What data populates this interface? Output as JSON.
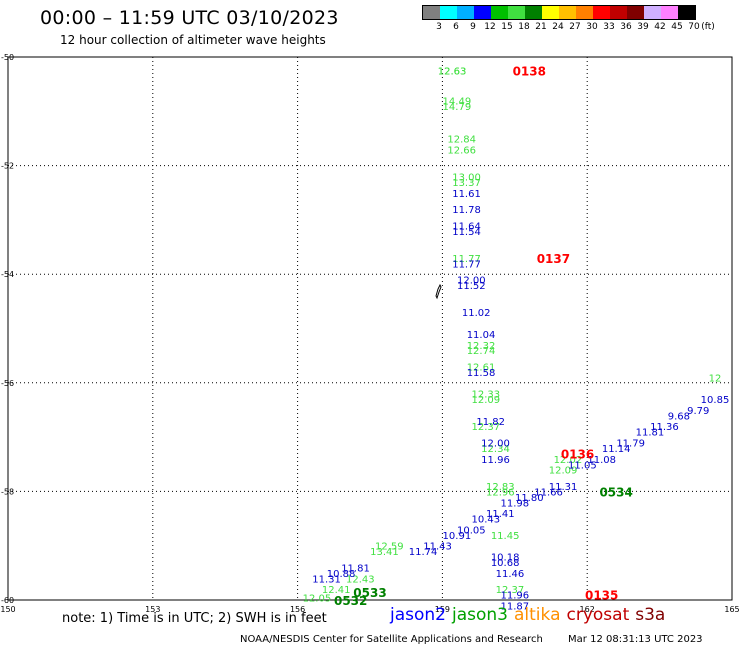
{
  "header": {
    "title": "00:00 – 11:59 UTC 03/10/2023",
    "subtitle": "12 hour collection of altimeter wave heights"
  },
  "legend": {
    "colors": [
      "#808080",
      "#00ffff",
      "#00b0ff",
      "#0000ff",
      "#00c000",
      "#40e040",
      "#008000",
      "#ffff00",
      "#ffc000",
      "#ff8000",
      "#ff0000",
      "#c00000",
      "#800000",
      "#d0b0ff",
      "#ff80ff",
      "#000000"
    ],
    "labels": [
      "3",
      "6",
      "9",
      "12",
      "15",
      "18",
      "21",
      "24",
      "27",
      "30",
      "33",
      "36",
      "39",
      "42",
      "45",
      "70"
    ],
    "unit": "(ft)"
  },
  "axes": {
    "lon_labels": [
      "150",
      "153",
      "156",
      "159",
      "162",
      "165"
    ],
    "lat_labels": [
      "-50",
      "-52",
      "-54",
      "-56",
      "-58",
      "-60"
    ]
  },
  "map_data": {
    "passes": [
      {
        "satellite": "jason3",
        "color": "#40e040",
        "tracks": [
          {
            "lon": 159.2,
            "lat": -50.25,
            "label": "12.63"
          },
          {
            "lon": 159.2,
            "lat": -50.25,
            "label": "12.63"
          },
          {
            "lon": 159.3,
            "lat": -50.8,
            "label": "14.49"
          },
          {
            "lon": 159.3,
            "lat": -50.9,
            "label": "14.79"
          },
          {
            "lon": 159.4,
            "lat": -51.5,
            "label": "12.84"
          },
          {
            "lon": 159.4,
            "lat": -51.7,
            "label": "12.66"
          },
          {
            "lon": 159.5,
            "lat": -52.2,
            "label": "13.00"
          },
          {
            "lon": 159.5,
            "lat": -52.3,
            "label": "13.37"
          },
          {
            "lon": 159.5,
            "lat": -53.7,
            "label": "11.77"
          },
          {
            "lon": 159.8,
            "lat": -55.3,
            "label": "12.32"
          },
          {
            "lon": 159.8,
            "lat": -55.4,
            "label": "12.74"
          },
          {
            "lon": 159.8,
            "lat": -55.7,
            "label": "12.61"
          },
          {
            "lon": 159.9,
            "lat": -56.2,
            "label": "12.33"
          },
          {
            "lon": 159.9,
            "lat": -56.3,
            "label": "12.09"
          },
          {
            "lon": 159.9,
            "lat": -56.8,
            "label": "12.37"
          },
          {
            "lon": 160.1,
            "lat": -57.2,
            "label": "12.34"
          },
          {
            "lon": 160.2,
            "lat": -57.9,
            "label": "12.83"
          },
          {
            "lon": 160.2,
            "lat": -58.0,
            "label": "12.96"
          },
          {
            "lon": 160.3,
            "lat": -58.8,
            "label": "11.45"
          },
          {
            "lon": 160.4,
            "lat": -59.8,
            "label": "12.37"
          },
          {
            "lon": 161.5,
            "lat": -57.6,
            "label": "12.09"
          },
          {
            "lon": 161.6,
            "lat": -57.4,
            "label": "12.02"
          },
          {
            "lon": 164.9,
            "lat": -55.9,
            "label": "12"
          },
          {
            "lon": 157.8,
            "lat": -59.1,
            "label": "13.41"
          },
          {
            "lon": 157.9,
            "lat": -59.0,
            "label": "12.59"
          },
          {
            "lon": 157.3,
            "lat": -59.6,
            "label": "12.43"
          },
          {
            "lon": 156.8,
            "lat": -59.8,
            "label": "12.41"
          },
          {
            "lon": 156.4,
            "lat": -59.95,
            "label": "12.05"
          }
        ]
      },
      {
        "satellite": "jason2",
        "color": "#0000c8",
        "tracks": [
          {
            "lon": 159.5,
            "lat": -52.5,
            "label": "11.61"
          },
          {
            "lon": 159.5,
            "lat": -52.8,
            "label": "11.78"
          },
          {
            "lon": 159.5,
            "lat": -53.1,
            "label": "11.64"
          },
          {
            "lon": 159.5,
            "lat": -53.2,
            "label": "11.54"
          },
          {
            "lon": 159.5,
            "lat": -53.8,
            "label": "11.77"
          },
          {
            "lon": 159.6,
            "lat": -54.1,
            "label": "12.00"
          },
          {
            "lon": 159.6,
            "lat": -54.2,
            "label": "11.52"
          },
          {
            "lon": 159.7,
            "lat": -54.7,
            "label": "11.02"
          },
          {
            "lon": 159.8,
            "lat": -55.1,
            "label": "11.04"
          },
          {
            "lon": 159.8,
            "lat": -55.8,
            "label": "11.58"
          },
          {
            "lon": 160.0,
            "lat": -56.7,
            "label": "11.82"
          },
          {
            "lon": 160.1,
            "lat": -57.1,
            "label": "12.00"
          },
          {
            "lon": 160.1,
            "lat": -57.4,
            "label": "11.96"
          },
          {
            "lon": 160.3,
            "lat": -59.2,
            "label": "10.18"
          },
          {
            "lon": 160.3,
            "lat": -59.3,
            "label": "10.68"
          },
          {
            "lon": 160.4,
            "lat": -59.5,
            "label": "11.46"
          },
          {
            "lon": 160.5,
            "lat": -59.9,
            "label": "11.96"
          },
          {
            "lon": 160.5,
            "lat": -60.1,
            "label": "11.87"
          },
          {
            "lon": 164.7,
            "lat": -56.3,
            "label": "10.85"
          },
          {
            "lon": 164.3,
            "lat": -56.5,
            "label": "9.79"
          },
          {
            "lon": 163.9,
            "lat": -56.6,
            "label": "9.68"
          },
          {
            "lon": 163.6,
            "lat": -56.8,
            "label": "11.36"
          },
          {
            "lon": 163.3,
            "lat": -56.9,
            "label": "11.81"
          },
          {
            "lon": 162.9,
            "lat": -57.1,
            "label": "11.79"
          },
          {
            "lon": 162.6,
            "lat": -57.2,
            "label": "11.14"
          },
          {
            "lon": 162.3,
            "lat": -57.4,
            "label": "11.08"
          },
          {
            "lon": 161.9,
            "lat": -57.5,
            "label": "11.05"
          },
          {
            "lon": 161.5,
            "lat": -57.9,
            "label": "11.31"
          },
          {
            "lon": 161.2,
            "lat": -58.0,
            "label": "11.66"
          },
          {
            "lon": 160.8,
            "lat": -58.1,
            "label": "11.80"
          },
          {
            "lon": 160.5,
            "lat": -58.2,
            "label": "11.98"
          },
          {
            "lon": 160.2,
            "lat": -58.4,
            "label": "11.41"
          },
          {
            "lon": 159.9,
            "lat": -58.5,
            "label": "10.43"
          },
          {
            "lon": 159.6,
            "lat": -58.7,
            "label": "10.05"
          },
          {
            "lon": 159.3,
            "lat": -58.8,
            "label": "10.91"
          },
          {
            "lon": 158.9,
            "lat": -59.0,
            "label": "11.43"
          },
          {
            "lon": 158.6,
            "lat": -59.1,
            "label": "11.74"
          },
          {
            "lon": 157.2,
            "lat": -59.4,
            "label": "11.81"
          },
          {
            "lon": 156.9,
            "lat": -59.5,
            "label": "10.88"
          },
          {
            "lon": 156.6,
            "lat": -59.6,
            "label": "11.31"
          }
        ]
      }
    ],
    "time_labels": [
      {
        "lon": 160.8,
        "lat": -50.25,
        "label": "0138",
        "color": "#ff0000"
      },
      {
        "lon": 161.3,
        "lat": -53.7,
        "label": "0137",
        "color": "#ff0000"
      },
      {
        "lon": 161.8,
        "lat": -57.3,
        "label": "0136",
        "color": "#ff0000"
      },
      {
        "lon": 162.3,
        "lat": -59.9,
        "label": "0135",
        "color": "#ff0000"
      },
      {
        "lon": 162.6,
        "lat": -58.0,
        "label": "0534",
        "color": "#008000"
      },
      {
        "lon": 157.5,
        "lat": -59.85,
        "label": "0533",
        "color": "#008000"
      },
      {
        "lon": 157.1,
        "lat": -60.0,
        "label": "0532",
        "color": "#008000"
      }
    ]
  },
  "footer": {
    "note": "note:  1) Time is in UTC;  2) SWH is in feet",
    "satellites": [
      {
        "name": "jason2",
        "color": "#0000ff"
      },
      {
        "name": "jason3",
        "color": "#00a000"
      },
      {
        "name": "altika",
        "color": "#ff9000"
      },
      {
        "name": "cryosat",
        "color": "#c00000"
      },
      {
        "name": "s3a",
        "color": "#800000"
      }
    ],
    "credit": "NOAA/NESDIS Center for Satellite Applications and Research",
    "timestamp": "Mar 12 08:31:13 UTC 2023"
  }
}
